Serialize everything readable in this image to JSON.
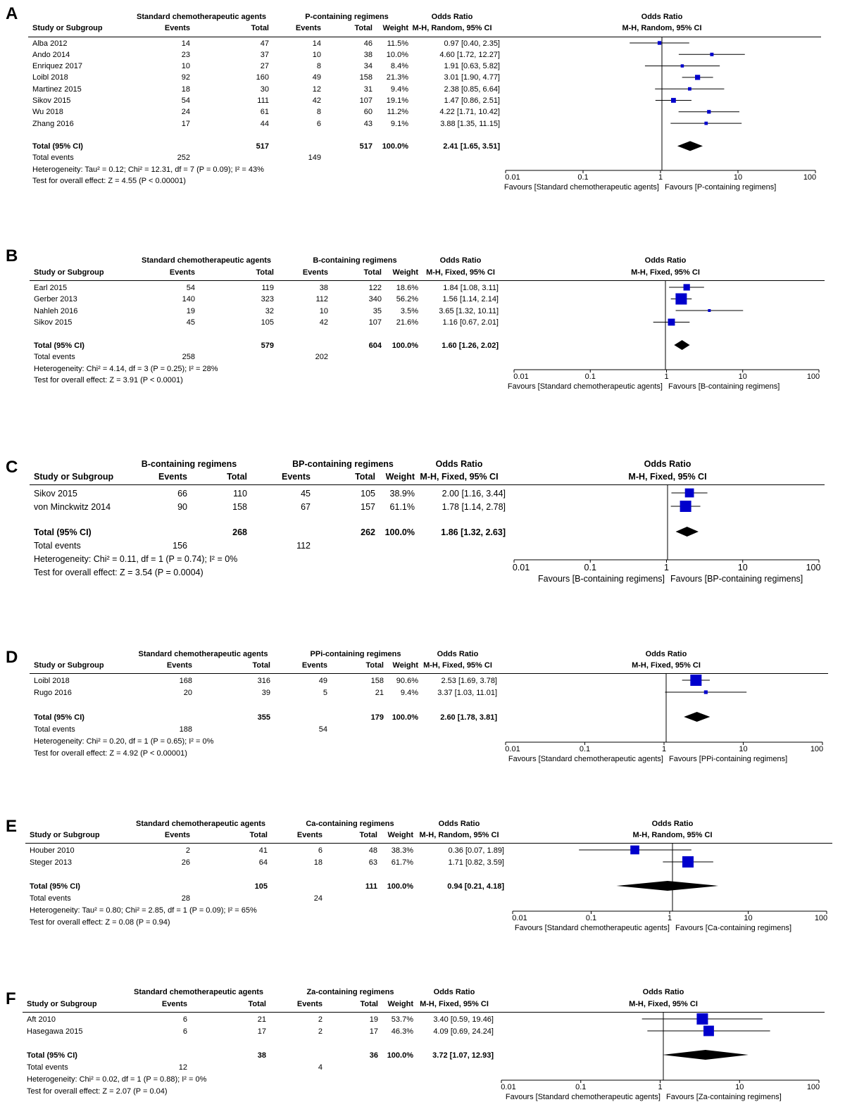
{
  "chart_data": [
    {
      "type": "forest",
      "panel": "A",
      "group1": "Standard chemotherapeutic agents",
      "group2": "P-containing regimens",
      "col_headers": {
        "study": "Study or Subgroup",
        "events": "Events",
        "total": "Total",
        "weight": "Weight",
        "or_title": "Odds Ratio",
        "or_method": "M-H, Random, 95% CI"
      },
      "studies": [
        {
          "name": "Alba 2012",
          "e1": "14",
          "n1": "47",
          "e2": "14",
          "n2": "46",
          "weight": "11.5%",
          "ci_text": "0.97 [0.40, 2.35]",
          "or": 0.97,
          "lo": 0.4,
          "hi": 2.35
        },
        {
          "name": "Ando 2014",
          "e1": "23",
          "n1": "37",
          "e2": "10",
          "n2": "38",
          "weight": "10.0%",
          "ci_text": "4.60 [1.72, 12.27]",
          "or": 4.6,
          "lo": 1.72,
          "hi": 12.27
        },
        {
          "name": "Enriquez 2017",
          "e1": "10",
          "n1": "27",
          "e2": "8",
          "n2": "34",
          "weight": "8.4%",
          "ci_text": "1.91 [0.63, 5.82]",
          "or": 1.91,
          "lo": 0.63,
          "hi": 5.82
        },
        {
          "name": "Loibl 2018",
          "e1": "92",
          "n1": "160",
          "e2": "49",
          "n2": "158",
          "weight": "21.3%",
          "ci_text": "3.01 [1.90, 4.77]",
          "or": 3.01,
          "lo": 1.9,
          "hi": 4.77
        },
        {
          "name": "Martinez 2015",
          "e1": "18",
          "n1": "30",
          "e2": "12",
          "n2": "31",
          "weight": "9.4%",
          "ci_text": "2.38 [0.85, 6.64]",
          "or": 2.38,
          "lo": 0.85,
          "hi": 6.64
        },
        {
          "name": "Sikov 2015",
          "e1": "54",
          "n1": "111",
          "e2": "42",
          "n2": "107",
          "weight": "19.1%",
          "ci_text": "1.47 [0.86, 2.51]",
          "or": 1.47,
          "lo": 0.86,
          "hi": 2.51
        },
        {
          "name": "Wu 2018",
          "e1": "24",
          "n1": "61",
          "e2": "8",
          "n2": "60",
          "weight": "11.2%",
          "ci_text": "4.22 [1.71, 10.42]",
          "or": 4.22,
          "lo": 1.71,
          "hi": 10.42
        },
        {
          "name": "Zhang 2016",
          "e1": "17",
          "n1": "44",
          "e2": "6",
          "n2": "43",
          "weight": "9.1%",
          "ci_text": "3.88 [1.35, 11.15]",
          "or": 3.88,
          "lo": 1.35,
          "hi": 11.15
        }
      ],
      "total": {
        "label": "Total (95% CI)",
        "n1": "517",
        "n2": "517",
        "weight": "100.0%",
        "ci_text": "2.41 [1.65, 3.51]",
        "or": 2.41,
        "lo": 1.65,
        "hi": 3.51
      },
      "total_events": {
        "label": "Total events",
        "e1": "252",
        "e2": "149"
      },
      "heterogeneity": "Heterogeneity: Tau² = 0.12; Chi² = 12.31, df = 7 (P = 0.09); I² = 43%",
      "overall_effect": "Test for overall effect: Z = 4.55 (P < 0.00001)",
      "xticks": [
        "0.01",
        "0.1",
        "1",
        "10",
        "100"
      ],
      "favours_left": "Favours [Standard chemotherapeutic agents]",
      "favours_right": "Favours [P-containing regimens]",
      "x_scale": "log"
    },
    {
      "type": "forest",
      "panel": "B",
      "group1": "Standard chemotherapeutic agents",
      "group2": "B-containing regimens",
      "col_headers": {
        "study": "Study or Subgroup",
        "events": "Events",
        "total": "Total",
        "weight": "Weight",
        "or_title": "Odds Ratio",
        "or_method": "M-H, Fixed, 95% CI"
      },
      "studies": [
        {
          "name": "Earl 2015",
          "e1": "54",
          "n1": "119",
          "e2": "38",
          "n2": "122",
          "weight": "18.6%",
          "ci_text": "1.84 [1.08, 3.11]",
          "or": 1.84,
          "lo": 1.08,
          "hi": 3.11
        },
        {
          "name": "Gerber 2013",
          "e1": "140",
          "n1": "323",
          "e2": "112",
          "n2": "340",
          "weight": "56.2%",
          "ci_text": "1.56 [1.14, 2.14]",
          "or": 1.56,
          "lo": 1.14,
          "hi": 2.14
        },
        {
          "name": "Nahleh 2016",
          "e1": "19",
          "n1": "32",
          "e2": "10",
          "n2": "35",
          "weight": "3.5%",
          "ci_text": "3.65 [1.32, 10.11]",
          "or": 3.65,
          "lo": 1.32,
          "hi": 10.11
        },
        {
          "name": "Sikov 2015",
          "e1": "45",
          "n1": "105",
          "e2": "42",
          "n2": "107",
          "weight": "21.6%",
          "ci_text": "1.16 [0.67, 2.01]",
          "or": 1.16,
          "lo": 0.67,
          "hi": 2.01
        }
      ],
      "total": {
        "label": "Total (95% CI)",
        "n1": "579",
        "n2": "604",
        "weight": "100.0%",
        "ci_text": "1.60 [1.26, 2.02]",
        "or": 1.6,
        "lo": 1.26,
        "hi": 2.02
      },
      "total_events": {
        "label": "Total events",
        "e1": "258",
        "e2": "202"
      },
      "heterogeneity": "Heterogeneity: Chi² = 4.14, df = 3 (P = 0.25); I² = 28%",
      "overall_effect": "Test for overall effect: Z = 3.91 (P < 0.0001)",
      "xticks": [
        "0.01",
        "0.1",
        "1",
        "10",
        "100"
      ],
      "favours_left": "Favours [Standard chemotherapeutic agents]",
      "favours_right": "Favours [B-containing regimens]",
      "x_scale": "log"
    },
    {
      "type": "forest",
      "panel": "C",
      "group1": "B-containing regimens",
      "group2": "BP-containing regimens",
      "col_headers": {
        "study": "Study or Subgroup",
        "events": "Events",
        "total": "Total",
        "weight": "Weight",
        "or_title": "Odds Ratio",
        "or_method": "M-H, Fixed, 95% CI"
      },
      "studies": [
        {
          "name": "Sikov 2015",
          "e1": "66",
          "n1": "110",
          "e2": "45",
          "n2": "105",
          "weight": "38.9%",
          "ci_text": "2.00 [1.16, 3.44]",
          "or": 2.0,
          "lo": 1.16,
          "hi": 3.44
        },
        {
          "name": "von Minckwitz 2014",
          "e1": "90",
          "n1": "158",
          "e2": "67",
          "n2": "157",
          "weight": "61.1%",
          "ci_text": "1.78 [1.14, 2.78]",
          "or": 1.78,
          "lo": 1.14,
          "hi": 2.78
        }
      ],
      "total": {
        "label": "Total (95% CI)",
        "n1": "268",
        "n2": "262",
        "weight": "100.0%",
        "ci_text": "1.86 [1.32, 2.63]",
        "or": 1.86,
        "lo": 1.32,
        "hi": 2.63
      },
      "total_events": {
        "label": "Total events",
        "e1": "156",
        "e2": "112"
      },
      "heterogeneity": "Heterogeneity: Chi² = 0.11, df = 1 (P = 0.74); I² = 0%",
      "overall_effect": "Test for overall effect: Z = 3.54 (P = 0.0004)",
      "xticks": [
        "0.01",
        "0.1",
        "1",
        "10",
        "100"
      ],
      "favours_left": "Favours [B-containing regimens]",
      "favours_right": "Favours [BP-containing regimens]",
      "x_scale": "log"
    },
    {
      "type": "forest",
      "panel": "D",
      "group1": "Standard chemotherapeutic agents",
      "group2": "PPi-containing regimens",
      "col_headers": {
        "study": "Study or Subgroup",
        "events": "Events",
        "total": "Total",
        "weight": "Weight",
        "or_title": "Odds Ratio",
        "or_method": "M-H, Fixed, 95% CI"
      },
      "studies": [
        {
          "name": "Loibl 2018",
          "e1": "168",
          "n1": "316",
          "e2": "49",
          "n2": "158",
          "weight": "90.6%",
          "ci_text": "2.53 [1.69, 3.78]",
          "or": 2.53,
          "lo": 1.69,
          "hi": 3.78
        },
        {
          "name": "Rugo 2016",
          "e1": "20",
          "n1": "39",
          "e2": "5",
          "n2": "21",
          "weight": "9.4%",
          "ci_text": "3.37 [1.03, 11.01]",
          "or": 3.37,
          "lo": 1.03,
          "hi": 11.01
        }
      ],
      "total": {
        "label": "Total (95% CI)",
        "n1": "355",
        "n2": "179",
        "weight": "100.0%",
        "ci_text": "2.60 [1.78, 3.81]",
        "or": 2.6,
        "lo": 1.78,
        "hi": 3.81
      },
      "total_events": {
        "label": "Total events",
        "e1": "188",
        "e2": "54"
      },
      "heterogeneity": "Heterogeneity: Chi² = 0.20, df = 1 (P = 0.65); I² = 0%",
      "overall_effect": "Test for overall effect: Z = 4.92 (P < 0.00001)",
      "xticks": [
        "0.01",
        "0.1",
        "1",
        "10",
        "100"
      ],
      "favours_left": "Favours [Standard chemotherapeutic agents]",
      "favours_right": "Favours [PPi-containing regimens]",
      "x_scale": "log"
    },
    {
      "type": "forest",
      "panel": "E",
      "group1": "Standard chemotherapeutic agents",
      "group2": "Ca-containing regimens",
      "col_headers": {
        "study": "Study or Subgroup",
        "events": "Events",
        "total": "Total",
        "weight": "Weight",
        "or_title": "Odds Ratio",
        "or_method": "M-H, Random, 95% CI"
      },
      "studies": [
        {
          "name": "Houber 2010",
          "e1": "2",
          "n1": "41",
          "e2": "6",
          "n2": "48",
          "weight": "38.3%",
          "ci_text": "0.36 [0.07, 1.89]",
          "or": 0.36,
          "lo": 0.07,
          "hi": 1.89
        },
        {
          "name": "Steger 2013",
          "e1": "26",
          "n1": "64",
          "e2": "18",
          "n2": "63",
          "weight": "61.7%",
          "ci_text": "1.71 [0.82, 3.59]",
          "or": 1.71,
          "lo": 0.82,
          "hi": 3.59
        }
      ],
      "total": {
        "label": "Total (95% CI)",
        "n1": "105",
        "n2": "111",
        "weight": "100.0%",
        "ci_text": "0.94 [0.21, 4.18]",
        "or": 0.94,
        "lo": 0.21,
        "hi": 4.18
      },
      "total_events": {
        "label": "Total events",
        "e1": "28",
        "e2": "24"
      },
      "heterogeneity": "Heterogeneity: Tau² = 0.80; Chi² = 2.85, df = 1 (P = 0.09); I² = 65%",
      "overall_effect": "Test for overall effect: Z = 0.08 (P = 0.94)",
      "xticks": [
        "0.01",
        "0.1",
        "1",
        "10",
        "100"
      ],
      "favours_left": "Favours [Standard chemotherapeutic agents]",
      "favours_right": "Favours [Ca-containing regimens]",
      "x_scale": "log"
    },
    {
      "type": "forest",
      "panel": "F",
      "group1": "Standard chemotherapeutic agents",
      "group2": "Za-containing regimens",
      "col_headers": {
        "study": "Study or Subgroup",
        "events": "Events",
        "total": "Total",
        "weight": "Weight",
        "or_title": "Odds Ratio",
        "or_method": "M-H, Fixed, 95% CI"
      },
      "studies": [
        {
          "name": "Aft 2010",
          "e1": "6",
          "n1": "21",
          "e2": "2",
          "n2": "19",
          "weight": "53.7%",
          "ci_text": "3.40 [0.59, 19.46]",
          "or": 3.4,
          "lo": 0.59,
          "hi": 19.46
        },
        {
          "name": "Hasegawa 2015",
          "e1": "6",
          "n1": "17",
          "e2": "2",
          "n2": "17",
          "weight": "46.3%",
          "ci_text": "4.09 [0.69, 24.24]",
          "or": 4.09,
          "lo": 0.69,
          "hi": 24.24
        }
      ],
      "total": {
        "label": "Total (95% CI)",
        "n1": "38",
        "n2": "36",
        "weight": "100.0%",
        "ci_text": "3.72 [1.07, 12.93]",
        "or": 3.72,
        "lo": 1.07,
        "hi": 12.93
      },
      "total_events": {
        "label": "Total events",
        "e1": "12",
        "e2": "4"
      },
      "heterogeneity": "Heterogeneity: Chi² = 0.02, df = 1 (P = 0.88); I² = 0%",
      "overall_effect": "Test for overall effect: Z = 2.07 (P = 0.04)",
      "xticks": [
        "0.01",
        "0.1",
        "1",
        "10",
        "100"
      ],
      "favours_left": "Favours [Standard chemotherapeutic agents]",
      "favours_right": "Favours [Za-containing regimens]",
      "x_scale": "log"
    }
  ],
  "colors": {
    "marker": "#0000cc",
    "diamond": "#000000",
    "axis": "#000000"
  }
}
